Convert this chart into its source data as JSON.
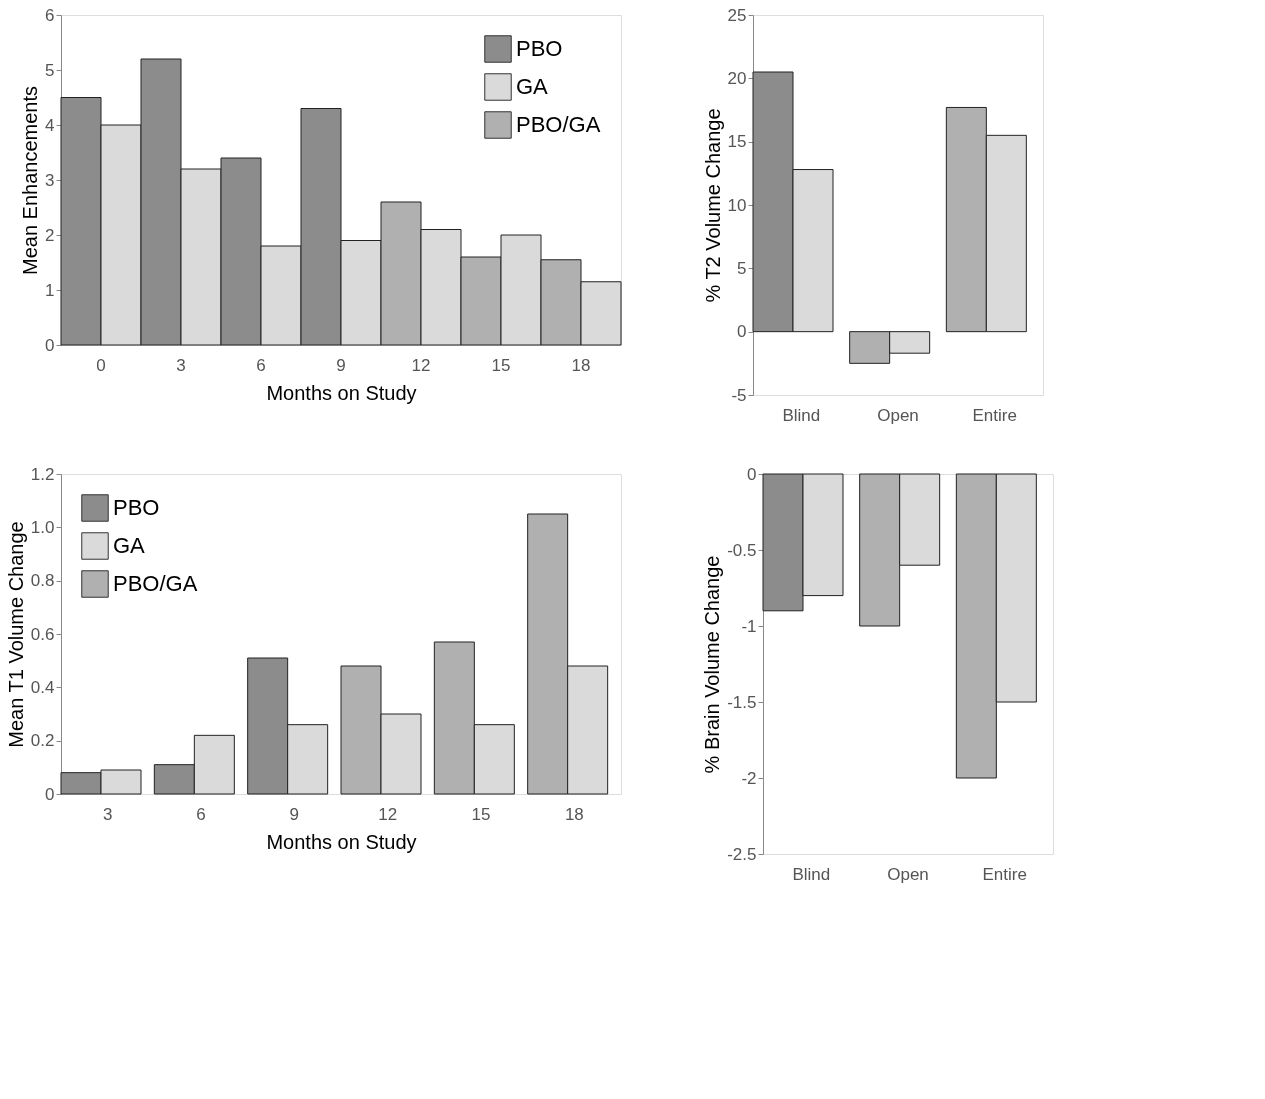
{
  "chart_data": [
    {
      "type": "bar",
      "xlabel": "Months on Study",
      "ylabel": "Mean Enhancements",
      "categories": [
        "0",
        "3",
        "6",
        "9",
        "12",
        "15",
        "18"
      ],
      "ylim": [
        0,
        6
      ],
      "yticks": [
        0,
        1,
        2,
        3,
        4,
        5,
        6
      ],
      "legend": "top right",
      "grid": false,
      "series": [
        {
          "name": "PBO",
          "color": "#8c8c8c",
          "values": [
            4.5,
            5.2,
            3.4,
            4.3,
            null,
            null,
            null
          ]
        },
        {
          "name": "GA",
          "color": "#dadada",
          "values": [
            4.0,
            3.2,
            1.8,
            1.9,
            2.1,
            2.0,
            1.15
          ]
        },
        {
          "name": "PBO/GA",
          "color": "#b0b0b0",
          "values": [
            null,
            null,
            null,
            null,
            2.6,
            1.6,
            1.55
          ]
        }
      ]
    },
    {
      "type": "bar",
      "ylabel": "% T2 Volume Change",
      "categories": [
        "Blind",
        "Open",
        "Entire"
      ],
      "ylim": [
        -5,
        25
      ],
      "yticks": [
        -5,
        0,
        5,
        10,
        15,
        20,
        25
      ],
      "legend": false,
      "grid": false,
      "series": [
        {
          "color": "#8c8c8c",
          "values": [
            20.5,
            null,
            null
          ]
        },
        {
          "color": "#dadada",
          "values": [
            12.8,
            -1.7,
            15.5
          ]
        },
        {
          "color": "#b0b0b0",
          "values": [
            null,
            -2.5,
            17.7
          ]
        }
      ]
    },
    {
      "type": "bar",
      "xlabel": "Months on Study",
      "ylabel": "Mean T1 Volume Change",
      "categories": [
        "3",
        "6",
        "9",
        "12",
        "15",
        "18"
      ],
      "ylim": [
        0,
        1.2
      ],
      "yticks": [
        0,
        0.2,
        0.4,
        0.6,
        0.8,
        {
          "value": 1,
          "label": "1.0"
        },
        1.2
      ],
      "legend": "top left",
      "grid": false,
      "series": [
        {
          "name": "PBO",
          "color": "#8c8c8c",
          "values": [
            0.08,
            0.11,
            0.51,
            null,
            null,
            null
          ]
        },
        {
          "name": "GA",
          "color": "#dadada",
          "values": [
            0.09,
            0.22,
            0.26,
            0.3,
            0.26,
            0.48
          ]
        },
        {
          "name": "PBO/GA",
          "color": "#b0b0b0",
          "values": [
            null,
            null,
            null,
            0.48,
            0.57,
            1.05
          ]
        }
      ]
    },
    {
      "type": "bar",
      "ylabel": "% Brain Volume Change",
      "categories": [
        "Blind",
        "Open",
        "Entire"
      ],
      "ylim": [
        -2.5,
        0
      ],
      "yticks": [
        -2.5,
        -2,
        -1.5,
        -1,
        -0.5,
        0
      ],
      "legend": false,
      "grid": false,
      "series": [
        {
          "color": "#8c8c8c",
          "values": [
            -0.9,
            null,
            null
          ]
        },
        {
          "color": "#dadada",
          "values": [
            -0.8,
            -0.6,
            -1.5
          ]
        },
        {
          "color": "#b0b0b0",
          "values": [
            null,
            -1.0,
            -2.0
          ]
        }
      ]
    }
  ]
}
